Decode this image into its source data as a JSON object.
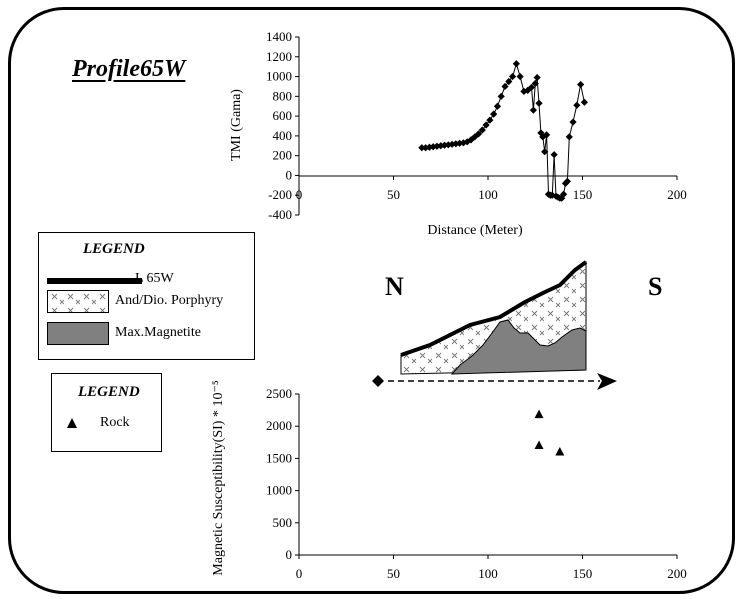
{
  "profile_title": "Profile65W",
  "directions": {
    "north": "N",
    "south": "S"
  },
  "legend_units": {
    "title": "LEGEND",
    "items": [
      {
        "label": "L 65W",
        "kind": "line"
      },
      {
        "label": "And/Dio. Porphyry",
        "kind": "crosshatch"
      },
      {
        "label": "Max.Magnetite",
        "kind": "gray",
        "color": "#808080"
      }
    ]
  },
  "legend_samples": {
    "title": "LEGEND",
    "items": [
      {
        "label": "Rock",
        "marker": "triangle"
      }
    ]
  },
  "chart_data": [
    {
      "type": "line",
      "marker": "diamond",
      "xlabel": "Distance (Meter)",
      "ylabel": "TMI (Gama)",
      "xlim": [
        0,
        200
      ],
      "ylim": [
        -400,
        1400
      ],
      "xticks": [
        0,
        50,
        100,
        150,
        200
      ],
      "yticks": [
        -400,
        -200,
        0,
        200,
        400,
        600,
        800,
        1000,
        1200,
        1400
      ],
      "x": [
        65,
        67,
        69,
        71,
        73,
        75,
        77,
        79,
        81,
        83,
        85,
        87,
        89,
        91,
        93,
        95,
        97,
        99,
        101,
        103,
        105,
        107,
        109,
        111,
        113,
        115,
        117,
        119,
        121,
        123,
        124,
        125,
        126,
        127,
        128,
        129,
        130,
        131,
        132,
        133,
        134,
        135,
        136,
        137,
        138,
        139,
        140,
        141,
        142,
        143,
        145,
        147,
        149,
        151
      ],
      "y": [
        280,
        280,
        285,
        290,
        295,
        300,
        305,
        310,
        315,
        320,
        325,
        330,
        340,
        360,
        390,
        420,
        460,
        510,
        560,
        620,
        700,
        800,
        900,
        950,
        1000,
        1130,
        1000,
        850,
        860,
        890,
        660,
        930,
        990,
        730,
        430,
        390,
        240,
        410,
        -190,
        -200,
        -200,
        210,
        -210,
        -220,
        -230,
        -230,
        -190,
        -80,
        -60,
        390,
        540,
        710,
        920,
        740
      ]
    },
    {
      "type": "scatter",
      "marker": "triangle",
      "series_label": "Rock",
      "xlabel": "",
      "ylabel": "Magnetic Susceptibility(SI) * 10⁻⁵",
      "xlim": [
        0,
        200
      ],
      "ylim": [
        0,
        2500
      ],
      "xticks": [
        0,
        50,
        100,
        150,
        200
      ],
      "yticks": [
        0,
        500,
        1000,
        1500,
        2000,
        2500
      ],
      "points": [
        {
          "x": 127,
          "y": 2180
        },
        {
          "x": 127,
          "y": 1700
        },
        {
          "x": 138,
          "y": 1600
        }
      ]
    }
  ]
}
